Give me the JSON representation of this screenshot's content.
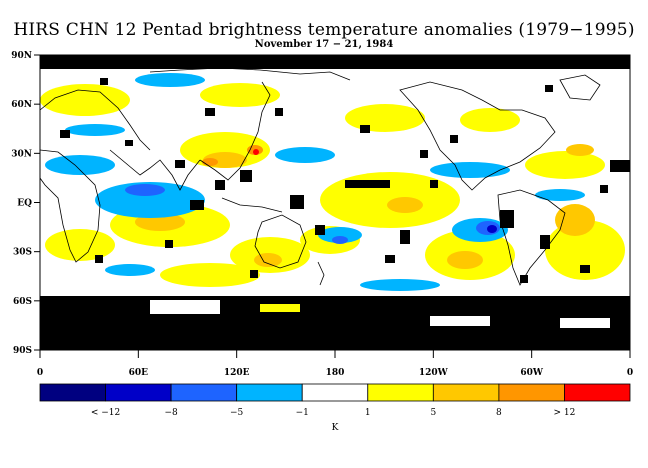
{
  "title": "HIRS CHN 12 Pentad brightness temperature anomalies (1979−1995)",
  "subtitle": "November 17 − 21, 1984",
  "lat_ticks": [
    "90N",
    "60N",
    "30N",
    "EQ",
    "30S",
    "60S",
    "90S"
  ],
  "lon_ticks": [
    "0",
    "60E",
    "120E",
    "180",
    "120W",
    "60W",
    "0"
  ],
  "colorbar": {
    "colors": [
      "#000080",
      "#0000c8",
      "#1e64ff",
      "#00b4ff",
      "#ffffff",
      "#ffff00",
      "#ffc800",
      "#ff9600",
      "#ff0000"
    ],
    "labels": [
      "< −12",
      "−8",
      "−5",
      "−1",
      "1",
      "5",
      "8",
      "> 12"
    ],
    "unit": "K"
  },
  "colors": {
    "missing": "#000000",
    "neutral": "#ffffff",
    "coast": "#000000"
  }
}
